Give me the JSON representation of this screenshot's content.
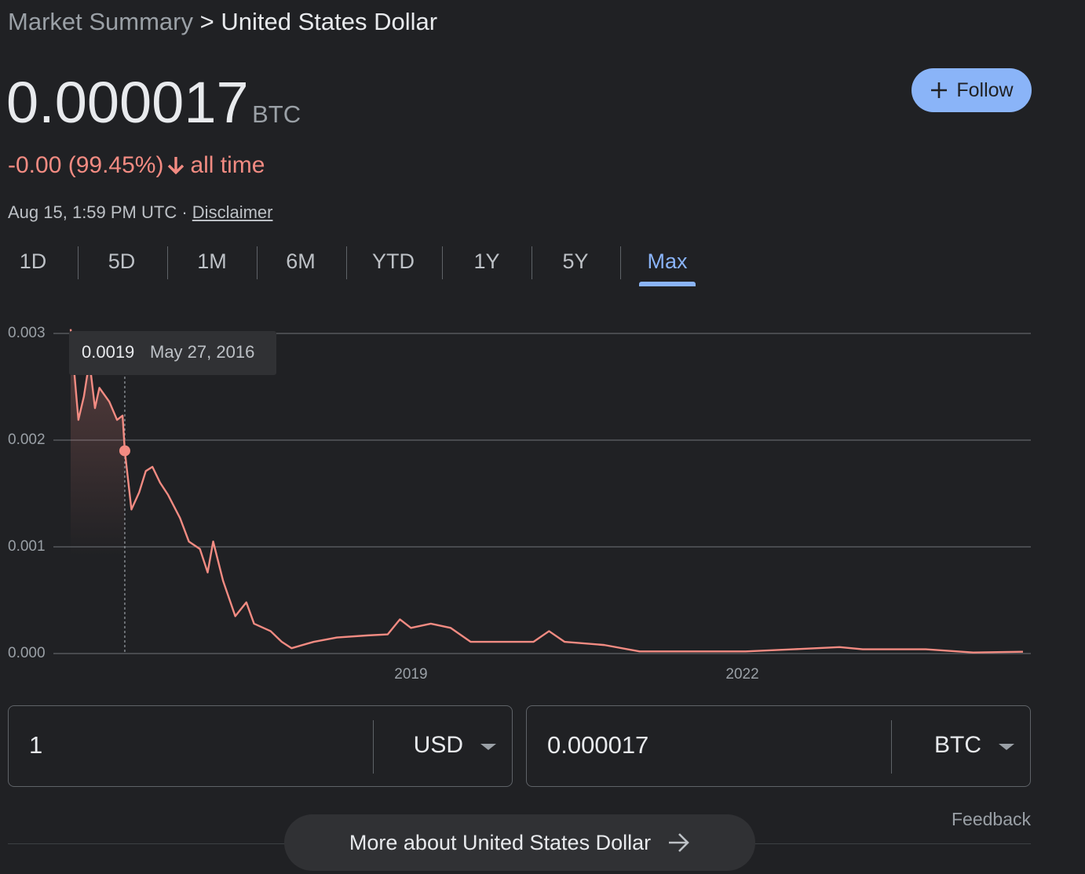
{
  "header": {
    "breadcrumb_root": "Market Summary",
    "breadcrumb_separator": ">",
    "breadcrumb_current": "United States Dollar"
  },
  "quote": {
    "price": "0.000017",
    "unit": "BTC",
    "change": "-0.00 (99.45%)",
    "change_period": "all time",
    "timestamp": "Aug 15, 1:59 PM UTC",
    "separator": "·",
    "disclaimer": "Disclaimer"
  },
  "follow_button": "Follow",
  "tabs": {
    "items": [
      "1D",
      "5D",
      "1M",
      "6M",
      "YTD",
      "1Y",
      "5Y",
      "Max"
    ],
    "active": "Max"
  },
  "chart_data": {
    "type": "line",
    "x": [
      2015.92,
      2015.95,
      2015.99,
      2016.04,
      2016.09,
      2016.14,
      2016.18,
      2016.27,
      2016.34,
      2016.39,
      2016.41,
      2016.47,
      2016.54,
      2016.6,
      2016.66,
      2016.73,
      2016.8,
      2016.91,
      2016.99,
      2017.09,
      2017.16,
      2017.21,
      2017.3,
      2017.41,
      2017.51,
      2017.58,
      2017.73,
      2017.83,
      2017.92,
      2018.12,
      2018.33,
      2018.61,
      2018.79,
      2018.9,
      2019.0,
      2019.18,
      2019.36,
      2019.54,
      2019.82,
      2020.11,
      2020.25,
      2020.39,
      2020.75,
      2021.07,
      2021.53,
      2022.03,
      2022.46,
      2022.88,
      2023.09,
      2023.66,
      2024.09,
      2024.54
    ],
    "series": [
      {
        "color": "#f28b82",
        "values": [
          0.00304,
          0.00267,
          0.00219,
          0.00241,
          0.00274,
          0.0023,
          0.00249,
          0.00236,
          0.00219,
          0.00223,
          0.0019,
          0.00135,
          0.00151,
          0.00171,
          0.00175,
          0.0016,
          0.00149,
          0.00127,
          0.00105,
          0.00098,
          0.00076,
          0.00105,
          0.00068,
          0.00035,
          0.00048,
          0.00028,
          0.00021,
          0.00011,
          5e-05,
          0.00011,
          0.00015,
          0.00017,
          0.00018,
          0.00032,
          0.00024,
          0.00028,
          0.00024,
          0.00011,
          0.00011,
          0.00011,
          0.00021,
          0.00011,
          8e-05,
          2e-05,
          2e-05,
          2e-05,
          4e-05,
          6e-05,
          4e-05,
          4e-05,
          1e-05,
          1.7e-05
        ]
      }
    ],
    "xlim": [
      2015.92,
      2024.54
    ],
    "xticks": [
      2019,
      2022
    ],
    "ylim": [
      0,
      0.003
    ],
    "yticks": [
      {
        "value": 0,
        "label": "0.000"
      },
      0.001,
      0.002,
      0.003
    ],
    "grid": true,
    "tooltip": {
      "value": 0.0019,
      "date": "May 27, 2016"
    }
  },
  "converter": {
    "from_amount": "1",
    "from_currency": "USD",
    "to_amount": "0.000017",
    "to_currency": "BTC"
  },
  "feedback": "Feedback",
  "more_button": "More about United States Dollar"
}
